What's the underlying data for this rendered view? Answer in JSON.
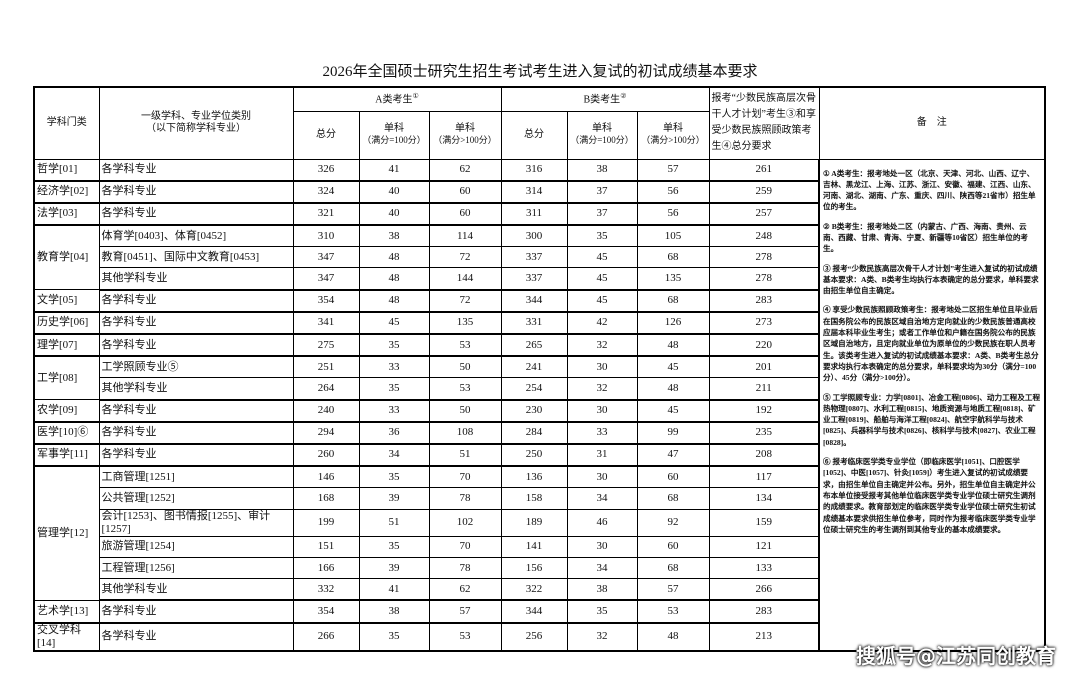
{
  "title": "2026年全国硕士研究生招生考试考生进入复试的初试成绩基本要求",
  "header": {
    "category": "学科门类",
    "subject": "一级学科、专业学位类别",
    "subject_note": "（以下简称学科专业）",
    "group_a": "A类考生",
    "group_a_mark": "①",
    "group_b": "B类考生",
    "group_b_mark": "②",
    "minority": "报考“少数民族高层次骨干人才计划”考生③和享受少数民族照顾政策考生④总分要求",
    "total": "总分",
    "single_100": "单科",
    "single_100_note": "（满分=100分）",
    "single_gt100": "单科",
    "single_gt100_note": "（满分>100分）",
    "notes_header": "备　注"
  },
  "rows": [
    {
      "cat": "哲学[01]",
      "span": 1,
      "sub": "各学科专业",
      "v": [
        "326",
        "41",
        "62",
        "316",
        "38",
        "57",
        "261"
      ]
    },
    {
      "cat": "经济学[02]",
      "span": 1,
      "sub": "各学科专业",
      "v": [
        "324",
        "40",
        "60",
        "314",
        "37",
        "56",
        "259"
      ]
    },
    {
      "cat": "法学[03]",
      "span": 1,
      "sub": "各学科专业",
      "v": [
        "321",
        "40",
        "60",
        "311",
        "37",
        "56",
        "257"
      ]
    },
    {
      "cat": "教育学[04]",
      "span": 3,
      "sub": "体育学[0403]、体育[0452]",
      "v": [
        "310",
        "38",
        "114",
        "300",
        "35",
        "105",
        "248"
      ]
    },
    {
      "sub": "教育[0451]、国际中文教育[0453]",
      "v": [
        "347",
        "48",
        "72",
        "337",
        "45",
        "68",
        "278"
      ]
    },
    {
      "sub": "其他学科专业",
      "v": [
        "347",
        "48",
        "144",
        "337",
        "45",
        "135",
        "278"
      ]
    },
    {
      "cat": "文学[05]",
      "span": 1,
      "sub": "各学科专业",
      "v": [
        "354",
        "48",
        "72",
        "344",
        "45",
        "68",
        "283"
      ]
    },
    {
      "cat": "历史学[06]",
      "span": 1,
      "sub": "各学科专业",
      "v": [
        "341",
        "45",
        "135",
        "331",
        "42",
        "126",
        "273"
      ]
    },
    {
      "cat": "理学[07]",
      "span": 1,
      "sub": "各学科专业",
      "v": [
        "275",
        "35",
        "53",
        "265",
        "32",
        "48",
        "220"
      ]
    },
    {
      "cat": "工学[08]",
      "span": 2,
      "sub": "工学照顾专业⑤",
      "v": [
        "251",
        "33",
        "50",
        "241",
        "30",
        "45",
        "201"
      ]
    },
    {
      "sub": "其他学科专业",
      "v": [
        "264",
        "35",
        "53",
        "254",
        "32",
        "48",
        "211"
      ]
    },
    {
      "cat": "农学[09]",
      "span": 1,
      "sub": "各学科专业",
      "v": [
        "240",
        "33",
        "50",
        "230",
        "30",
        "45",
        "192"
      ]
    },
    {
      "cat": "医学[10]⑥",
      "span": 1,
      "sub": "各学科专业",
      "v": [
        "294",
        "36",
        "108",
        "284",
        "33",
        "99",
        "235"
      ]
    },
    {
      "cat": "军事学[11]",
      "span": 1,
      "sub": "各学科专业",
      "v": [
        "260",
        "34",
        "51",
        "250",
        "31",
        "47",
        "208"
      ]
    },
    {
      "cat": "管理学[12]",
      "span": 6,
      "sub": "工商管理[1251]",
      "v": [
        "146",
        "35",
        "70",
        "136",
        "30",
        "60",
        "117"
      ]
    },
    {
      "sub": "公共管理[1252]",
      "v": [
        "168",
        "39",
        "78",
        "158",
        "34",
        "68",
        "134"
      ]
    },
    {
      "sub": "会计[1253]、图书情报[1255]、审计[1257]",
      "v": [
        "199",
        "51",
        "102",
        "189",
        "46",
        "92",
        "159"
      ]
    },
    {
      "sub": "旅游管理[1254]",
      "v": [
        "151",
        "35",
        "70",
        "141",
        "30",
        "60",
        "121"
      ]
    },
    {
      "sub": "工程管理[1256]",
      "v": [
        "166",
        "39",
        "78",
        "156",
        "34",
        "68",
        "133"
      ]
    },
    {
      "sub": "其他学科专业",
      "v": [
        "332",
        "41",
        "62",
        "322",
        "38",
        "57",
        "266"
      ]
    },
    {
      "cat": "艺术学[13]",
      "span": 1,
      "sub": "各学科专业",
      "v": [
        "354",
        "38",
        "57",
        "344",
        "35",
        "53",
        "283"
      ]
    },
    {
      "cat": "交叉学科[14]",
      "span": 1,
      "sub": "各学科专业",
      "v": [
        "266",
        "35",
        "53",
        "256",
        "32",
        "48",
        "213"
      ]
    }
  ],
  "notes": [
    "① A类考生：报考地处一区（北京、天津、河北、山西、辽宁、吉林、黑龙江、上海、江苏、浙江、安徽、福建、江西、山东、河南、湖北、湖南、广东、重庆、四川、陕西等21省市）招生单位的考生。",
    "② B类考生：报考地处二区（内蒙古、广西、海南、贵州、云南、西藏、甘肃、青海、宁夏、新疆等10省区）招生单位的考生。",
    "③ 报考“少数民族高层次骨干人才计划”考生进入复试的初试成绩基本要求：A类、B类考生均执行本表确定的总分要求，单科要求由招生单位自主确定。",
    "④ 享受少数民族照顾政策考生：报考地处二区招生单位且毕业后在国务院公布的民族区域自治地方定向就业的少数民族普通高校应届本科毕业生考生；或者工作单位和户籍在国务院公布的民族区域自治地方，且定向就业单位为原单位的少数民族在职人员考生。该类考生进入复试的初试成绩基本要求：A类、B类考生总分要求均执行本表确定的总分要求，单科要求均为30分（满分=100分）、45分（满分>100分）。",
    "⑤ 工学照顾专业：力学[0801]、冶金工程[0806]、动力工程及工程热物理[0807]、水利工程[0815]、地质资源与地质工程[0818]、矿业工程[0819]、船舶与海洋工程[0824]、航空宇航科学与技术[0825]、兵器科学与技术[0826]、核科学与技术[0827]、农业工程[0828]。",
    "⑥ 报考临床医学类专业学位（即临床医学[1051]、口腔医学[1052]、中医[1057]、针灸[1059]）考生进入复试的初试成绩要求，由招生单位自主确定并公布。另外，招生单位自主确定并公布本单位接受报考其他单位临床医学类专业学位硕士研究生调剂的成绩要求。教育部划定的临床医学类专业学位硕士研究生初试成绩基本要求供招生单位参考，同时作为报考临床医学类专业学位硕士研究生的考生调剂到其他专业的基本成绩要求。"
  ],
  "watermark": "搜狐号@江苏同创教育"
}
